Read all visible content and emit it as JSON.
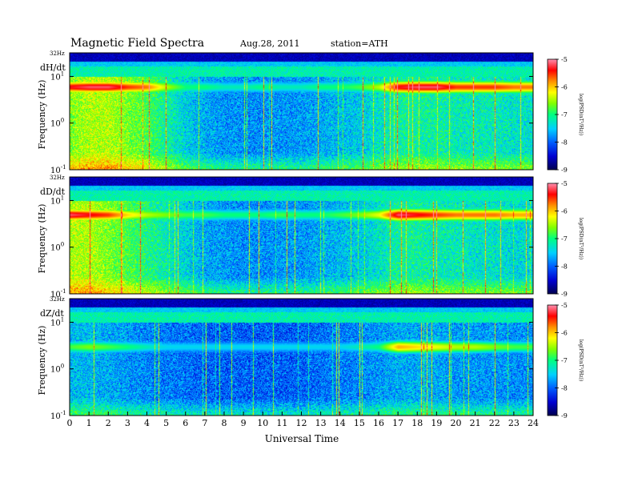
{
  "header": {
    "title": "Magnetic Field Spectra",
    "date": "Aug.28, 2011",
    "station": "station=ATH"
  },
  "chart_data": [
    {
      "type": "heatmap",
      "panel_label": "dH/dt",
      "ylabel": "Frequency (Hz)",
      "top_label": "32Hz",
      "y_ticks": [
        {
          "label": "10",
          "exp": "1",
          "value": 10
        },
        {
          "label": "10",
          "exp": "0",
          "value": 1
        },
        {
          "label": "10",
          "exp": "-1",
          "value": 0.1
        }
      ],
      "ylim": [
        0.1,
        32
      ],
      "colorbar": {
        "label": "log(PSD(nT²/Hz))",
        "ticks": [
          "-5",
          "-6",
          "-7",
          "-8",
          "-9"
        ],
        "range": [
          -9,
          -5
        ]
      },
      "features": {
        "band_hz": 6,
        "band_strength": [
          0.9,
          0.95,
          0.95,
          0.85,
          0.8,
          0.6,
          0.45,
          0.45,
          0.4,
          0.4,
          0.45,
          0.4,
          0.4,
          0.45,
          0.45,
          0.5,
          0.6,
          0.9,
          0.95,
          0.95,
          0.85,
          0.85,
          0.85,
          0.8
        ],
        "bg_level": [
          0.55,
          0.6,
          0.6,
          0.55,
          0.5,
          0.42,
          0.35,
          0.3,
          0.28,
          0.27,
          0.27,
          0.28,
          0.28,
          0.3,
          0.32,
          0.34,
          0.38,
          0.42,
          0.42,
          0.42,
          0.4,
          0.4,
          0.4,
          0.38
        ]
      }
    },
    {
      "type": "heatmap",
      "panel_label": "dD/dt",
      "ylabel": "Frequency (Hz)",
      "top_label": "32Hz",
      "y_ticks": [
        {
          "label": "10",
          "exp": "1",
          "value": 10
        },
        {
          "label": "10",
          "exp": "0",
          "value": 1
        },
        {
          "label": "10",
          "exp": "-1",
          "value": 0.1
        }
      ],
      "ylim": [
        0.1,
        32
      ],
      "colorbar": {
        "label": "log(PSD(nT²/Hz))",
        "ticks": [
          "-5",
          "-6",
          "-7",
          "-8",
          "-9"
        ],
        "range": [
          -9,
          -5
        ]
      },
      "features": {
        "band_hz": 5,
        "band_strength": [
          0.95,
          0.9,
          0.85,
          0.7,
          0.6,
          0.55,
          0.5,
          0.5,
          0.45,
          0.45,
          0.45,
          0.5,
          0.45,
          0.45,
          0.5,
          0.55,
          0.65,
          0.95,
          0.9,
          0.85,
          0.8,
          0.8,
          0.8,
          0.75
        ],
        "bg_level": [
          0.6,
          0.6,
          0.55,
          0.5,
          0.45,
          0.4,
          0.35,
          0.3,
          0.28,
          0.27,
          0.27,
          0.28,
          0.28,
          0.3,
          0.32,
          0.34,
          0.38,
          0.42,
          0.42,
          0.4,
          0.4,
          0.38,
          0.38,
          0.36
        ]
      }
    },
    {
      "type": "heatmap",
      "panel_label": "dZ/dt",
      "ylabel": "Frequency (Hz)",
      "top_label": "32Hz",
      "y_ticks": [
        {
          "label": "10",
          "exp": "1",
          "value": 10
        },
        {
          "label": "10",
          "exp": "0",
          "value": 1
        },
        {
          "label": "10",
          "exp": "-1",
          "value": 0.1
        }
      ],
      "ylim": [
        0.1,
        32
      ],
      "colorbar": {
        "label": "log(PSD(nT²/Hz))",
        "ticks": [
          "-5",
          "-6",
          "-7",
          "-8",
          "-9"
        ],
        "range": [
          -9,
          -5
        ]
      },
      "features": {
        "band_hz": 3,
        "band_strength": [
          0.5,
          0.55,
          0.5,
          0.45,
          0.4,
          0.35,
          0.35,
          0.35,
          0.35,
          0.35,
          0.35,
          0.35,
          0.35,
          0.35,
          0.35,
          0.4,
          0.45,
          0.75,
          0.7,
          0.65,
          0.6,
          0.6,
          0.55,
          0.5
        ],
        "bg_level": [
          0.32,
          0.32,
          0.3,
          0.28,
          0.26,
          0.25,
          0.24,
          0.22,
          0.22,
          0.22,
          0.22,
          0.22,
          0.22,
          0.24,
          0.25,
          0.26,
          0.28,
          0.3,
          0.3,
          0.3,
          0.28,
          0.28,
          0.28,
          0.27
        ]
      }
    }
  ],
  "x_axis": {
    "label": "Universal Time",
    "ticks": [
      "0",
      "1",
      "2",
      "3",
      "4",
      "5",
      "6",
      "7",
      "8",
      "9",
      "10",
      "11",
      "12",
      "13",
      "14",
      "15",
      "16",
      "17",
      "18",
      "19",
      "20",
      "21",
      "22",
      "23",
      "24"
    ],
    "range": [
      0,
      24
    ]
  },
  "colors": {
    "colormap": [
      "#000055",
      "#0000d0",
      "#0060ff",
      "#00d0ff",
      "#00ff80",
      "#80ff00",
      "#ffff00",
      "#ff9000",
      "#ff0000",
      "#ff90b0"
    ]
  }
}
